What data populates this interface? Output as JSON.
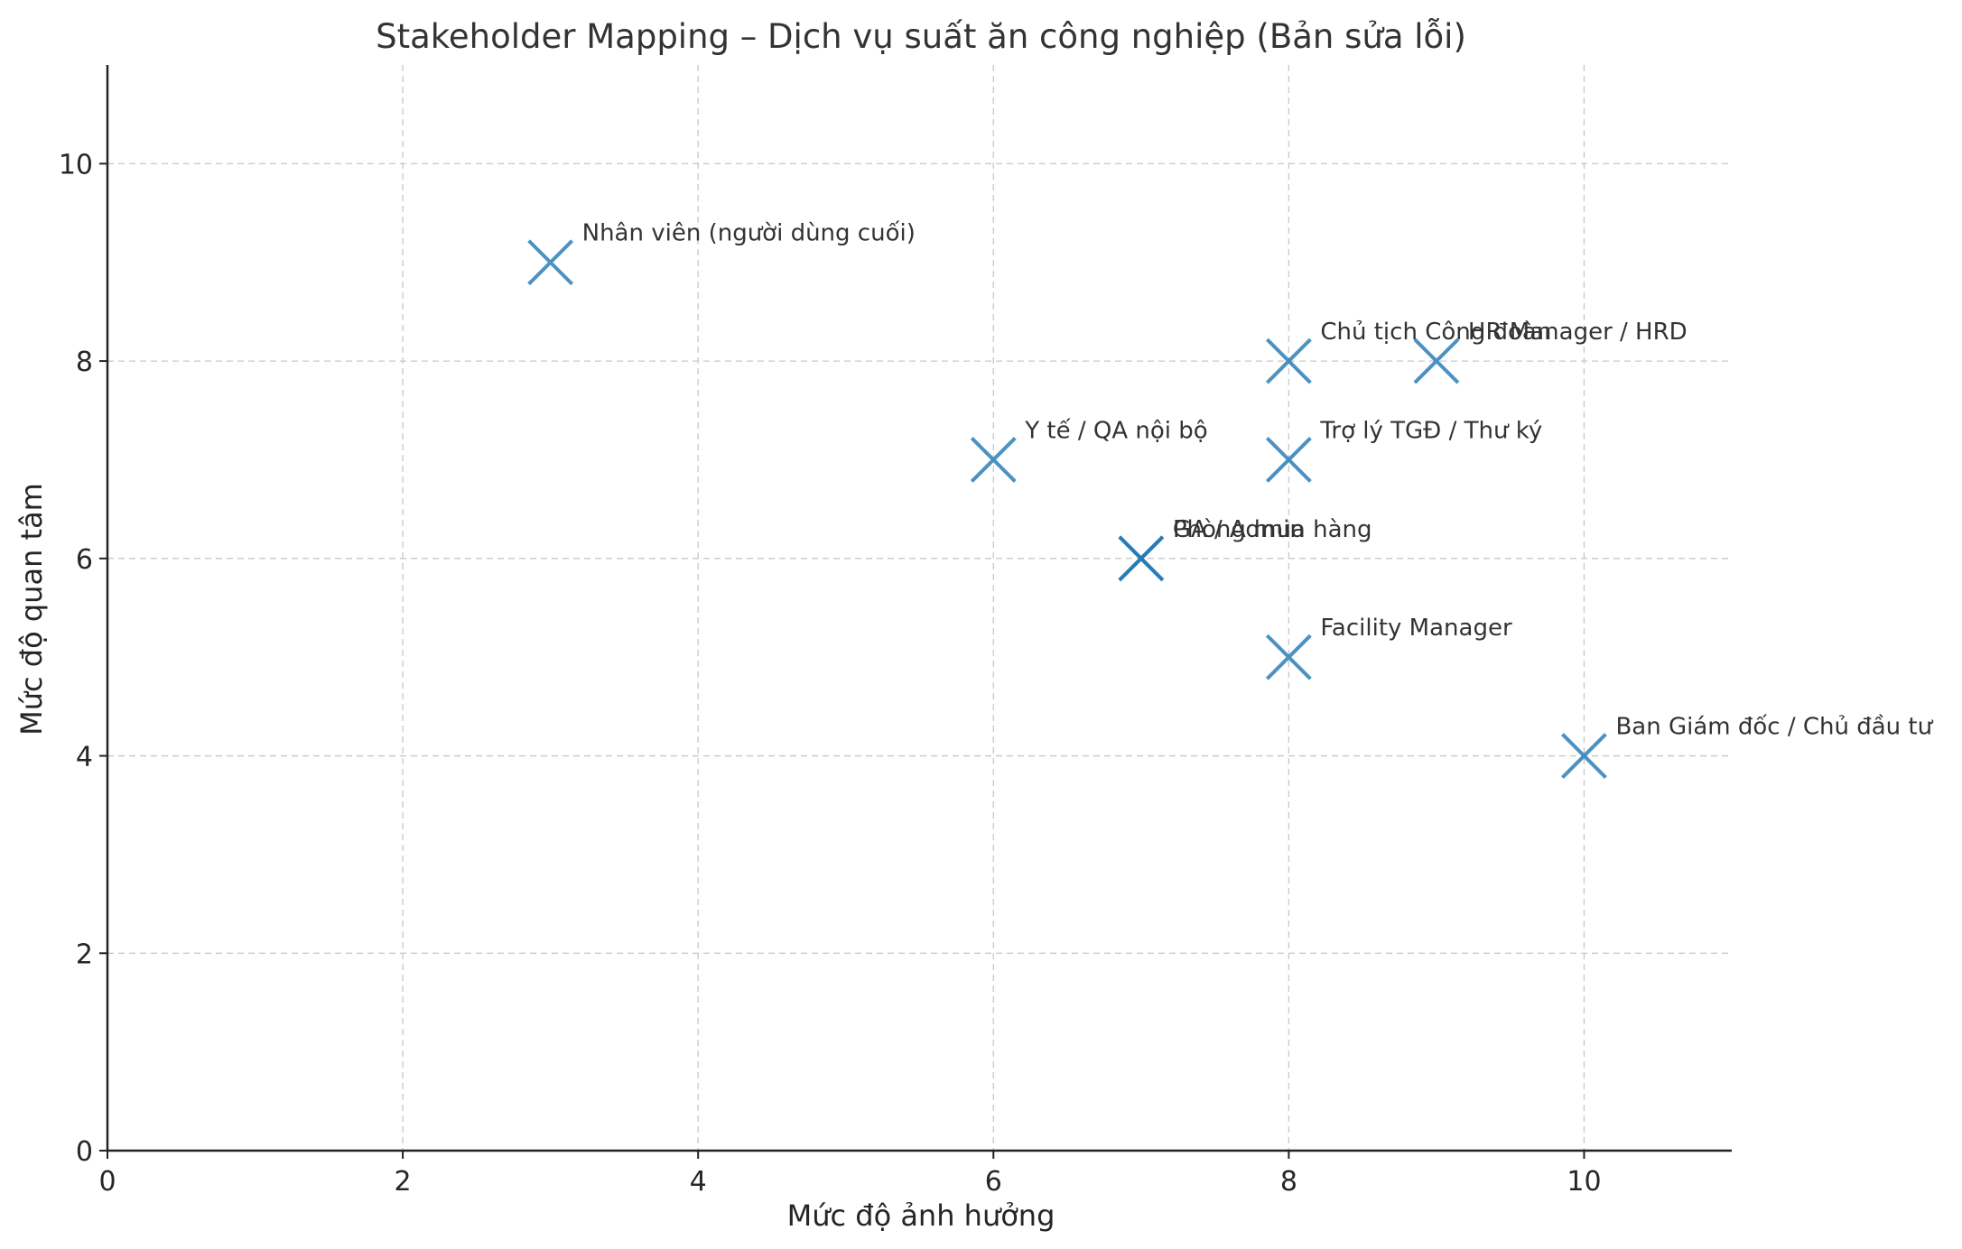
{
  "chart_data": {
    "type": "scatter",
    "title": "Stakeholder Mapping – Dịch vụ suất ăn công nghiệp (Bản sửa lỗi)",
    "xlabel": "Mức độ ảnh hưởng",
    "ylabel": "Mức độ quan tâm",
    "xlim": [
      0,
      11
    ],
    "ylim": [
      0,
      11
    ],
    "xticks": [
      0,
      2,
      4,
      6,
      8,
      10
    ],
    "yticks": [
      0,
      2,
      4,
      6,
      8,
      10
    ],
    "xtick_labels": [
      "0",
      "2",
      "4",
      "6",
      "8",
      "10"
    ],
    "ytick_labels": [
      "0",
      "2",
      "4",
      "6",
      "8",
      "10"
    ],
    "grid": true,
    "marker": "x",
    "marker_color": "#1f77b4",
    "points": [
      {
        "label": "Nhân viên (người dùng cuối)",
        "x": 3,
        "y": 9
      },
      {
        "label": "Chủ tịch Công đoàn",
        "x": 8,
        "y": 8
      },
      {
        "label": "HR Manager / HRD",
        "x": 9,
        "y": 8
      },
      {
        "label": "Y tế / QA nội bộ",
        "x": 6,
        "y": 7
      },
      {
        "label": "Trợ lý TGĐ / Thư ký",
        "x": 8,
        "y": 7
      },
      {
        "label": "GA / Admin",
        "x": 7,
        "y": 6
      },
      {
        "label": "Phòng mua hàng",
        "x": 7,
        "y": 6
      },
      {
        "label": "Facility Manager",
        "x": 8,
        "y": 5
      },
      {
        "label": "Ban Giám đốc / Chủ đầu tư",
        "x": 10,
        "y": 4
      }
    ]
  }
}
